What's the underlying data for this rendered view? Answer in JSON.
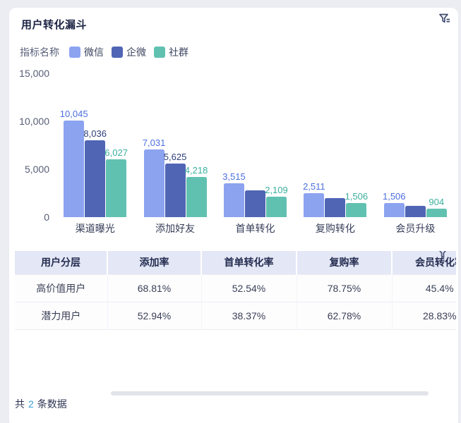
{
  "card": {
    "title": "用户转化漏斗"
  },
  "icons": {
    "header_filter": "funnel-filter-icon",
    "table_filter": "funnel-icon"
  },
  "legend": {
    "label": "指标名称",
    "items": [
      {
        "name": "微信",
        "color": "#8CA3F0"
      },
      {
        "name": "企微",
        "color": "#5066B4"
      },
      {
        "name": "社群",
        "color": "#61C1B1"
      }
    ]
  },
  "chart_data": {
    "type": "bar",
    "title": "用户转化漏斗",
    "categories": [
      "渠道曝光",
      "添加好友",
      "首单转化",
      "复购转化",
      "会员升级"
    ],
    "series": [
      {
        "name": "微信",
        "color": "#8CA3F0",
        "label_color": "#4C6FE0",
        "values": [
          10045,
          7031,
          3515,
          2511,
          1506
        ],
        "labels": [
          "10,045",
          "7,031",
          "3,515",
          "2,511",
          "1,506"
        ]
      },
      {
        "name": "企微",
        "color": "#5066B4",
        "label_color": "#2D3E78",
        "values": [
          8036,
          5625,
          2812,
          2008,
          1205
        ],
        "labels": [
          "8,036",
          "5,625",
          null,
          null,
          null
        ]
      },
      {
        "name": "社群",
        "color": "#61C1B1",
        "label_color": "#3BAF9E",
        "values": [
          6027,
          4218,
          2109,
          1506,
          904
        ],
        "labels": [
          "6,027",
          "4,218",
          "2,109",
          "1,506",
          "904"
        ]
      }
    ],
    "ylim": [
      0,
      15000
    ],
    "yticks": [
      "15,000",
      "10,000",
      "5,000",
      "0"
    ],
    "grid": false,
    "legend_position": "top-left"
  },
  "table": {
    "headers": [
      "用户分层",
      "添加率",
      "首单转化率",
      "复购率",
      "会员转化率"
    ],
    "rows": [
      [
        "高价值用户",
        "68.81%",
        "52.54%",
        "78.75%",
        "45.4%"
      ],
      [
        "潜力用户",
        "52.94%",
        "38.37%",
        "62.78%",
        "28.83%"
      ]
    ]
  },
  "footer": {
    "prefix": "共",
    "count": "2",
    "suffix": "条数据"
  }
}
